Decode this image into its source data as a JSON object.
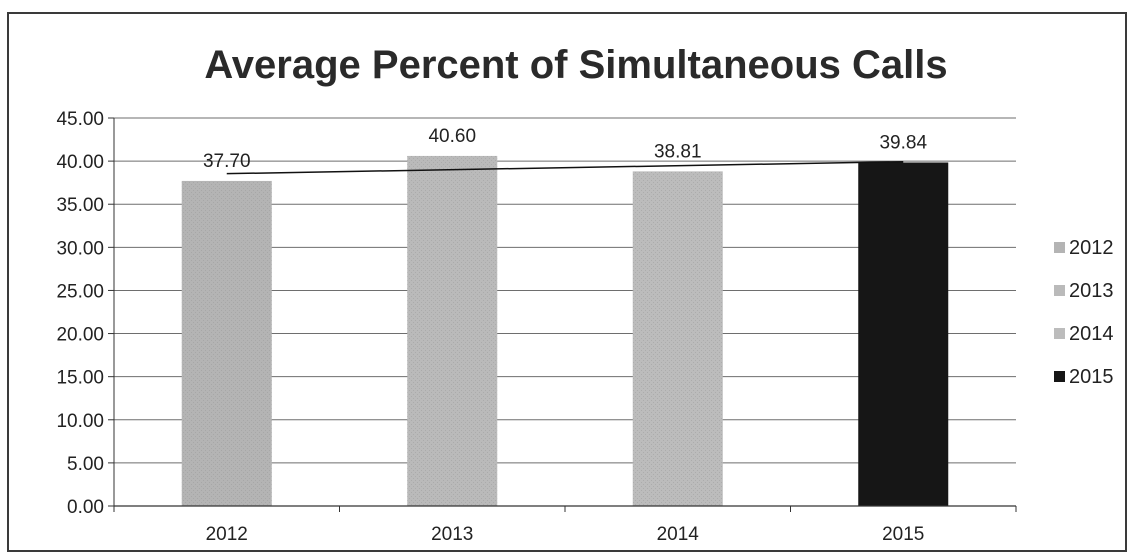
{
  "chart_data": {
    "type": "bar",
    "title": "Average Percent of Simultaneous Calls",
    "categories": [
      "2012",
      "2013",
      "2014",
      "2015"
    ],
    "values": [
      37.7,
      40.6,
      38.81,
      39.84
    ],
    "value_labels": [
      "37.70",
      "40.60",
      "38.81",
      "39.84"
    ],
    "ylim": [
      0,
      45
    ],
    "y_ticks": [
      "0.00",
      "5.00",
      "10.00",
      "15.00",
      "20.00",
      "25.00",
      "30.00",
      "35.00",
      "40.00",
      "45.00"
    ],
    "xlabel": "",
    "ylabel": "",
    "grid": true,
    "trendline": true,
    "legend": {
      "placement": "right",
      "entries": [
        "2012",
        "2013",
        "2014",
        "2015"
      ]
    },
    "colors": [
      "#b4b4b4",
      "#bababa",
      "#bcbcbc",
      "#161616"
    ]
  }
}
